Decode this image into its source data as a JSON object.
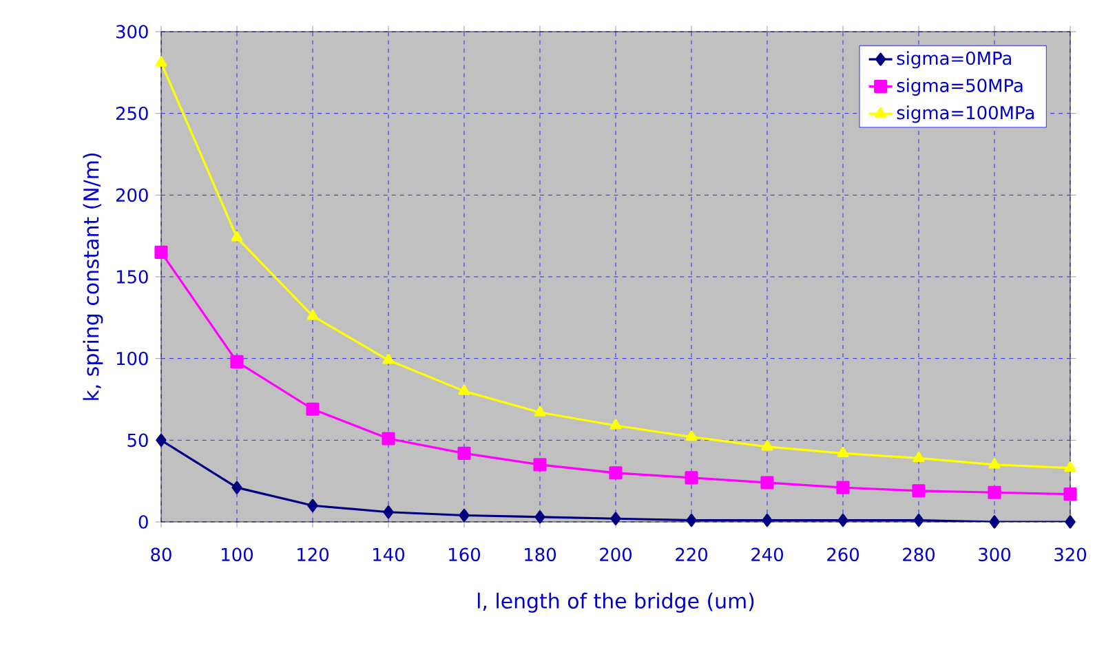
{
  "chart_data": {
    "type": "line",
    "xlabel": "l, length of the bridge (um)",
    "ylabel": "k, spring constant (N/m)",
    "x": [
      80,
      100,
      120,
      140,
      160,
      180,
      200,
      220,
      240,
      260,
      280,
      300,
      320
    ],
    "series": [
      {
        "name": "sigma=0MPa",
        "color": "#000080",
        "marker": "diamond",
        "values": [
          50,
          21,
          10,
          6,
          4,
          3,
          2,
          1,
          1,
          1,
          1,
          0,
          0
        ]
      },
      {
        "name": "sigma=50MPa",
        "color": "#ff00ff",
        "marker": "square",
        "values": [
          165,
          98,
          69,
          51,
          42,
          35,
          30,
          27,
          24,
          21,
          19,
          18,
          17
        ]
      },
      {
        "name": "sigma=100MPa",
        "color": "#ffff00",
        "marker": "triangle",
        "values": [
          281,
          174,
          126,
          99,
          80,
          67,
          59,
          52,
          46,
          42,
          39,
          35,
          33
        ]
      }
    ],
    "xlim": [
      80,
      320
    ],
    "xticks": [
      80,
      100,
      120,
      140,
      160,
      180,
      200,
      220,
      240,
      260,
      280,
      300,
      320
    ],
    "ylim": [
      0,
      300
    ],
    "yticks": [
      0,
      50,
      100,
      150,
      200,
      250,
      300
    ],
    "grid": true,
    "legend": "top right",
    "line_style": "solid"
  }
}
